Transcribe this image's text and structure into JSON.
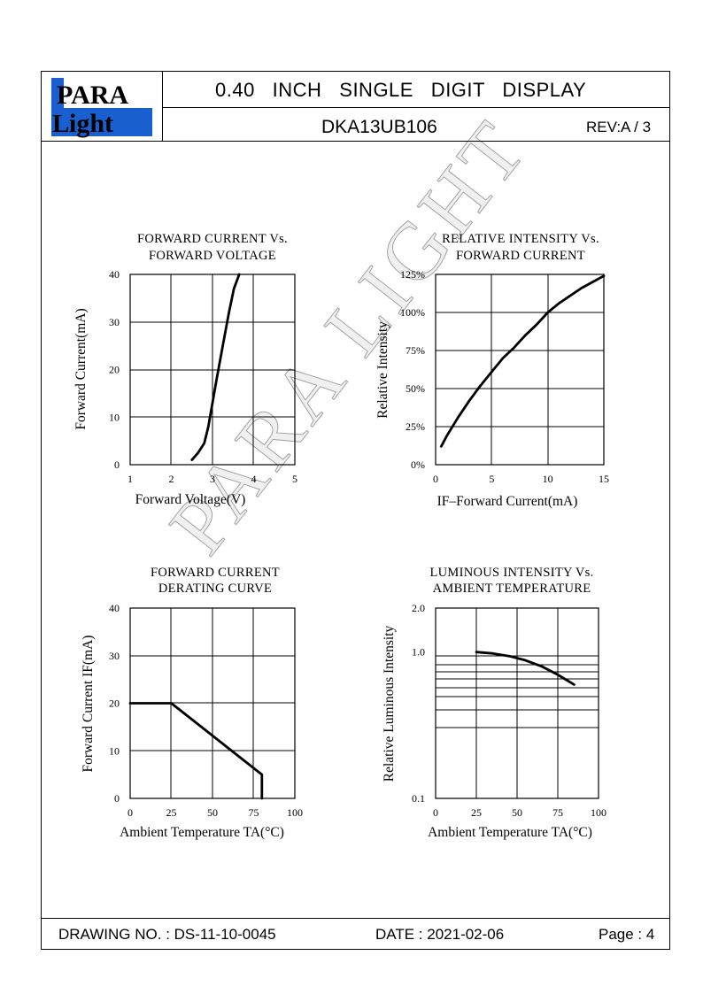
{
  "header": {
    "logo_top": "PARA",
    "logo_bottom": "ight",
    "logo_l": "L",
    "title": "0.40   INCH   SINGLE   DIGIT   DISPLAY",
    "part_number": "DKA13UB106",
    "revision": "REV:A / 3"
  },
  "footer": {
    "drawing_no": "DRAWING NO. : DS-11-10-0045",
    "date": "DATE : 2021-02-06",
    "page": "Page : 4"
  },
  "watermark": "PARA  LIGHT",
  "colors": {
    "logo_blue": "#1a5fd0",
    "line": "#000000"
  },
  "chart_data": [
    {
      "type": "line",
      "title": [
        "FORWARD  CURRENT  Vs.",
        "FORWARD  VOLTAGE"
      ],
      "xlabel": "Forward  Voltage(V)",
      "ylabel": "Forward  Current(mA)",
      "xlim": [
        1,
        5
      ],
      "ylim": [
        0,
        40
      ],
      "xticks": [
        "1",
        "2",
        "3",
        "4",
        "5"
      ],
      "yticks": [
        "0",
        "10",
        "20",
        "30",
        "40"
      ],
      "grid": true,
      "series": [
        {
          "x": [
            2.5,
            2.65,
            2.8,
            2.9,
            3.0,
            3.1,
            3.25,
            3.4,
            3.52,
            3.65
          ],
          "y": [
            1,
            2.5,
            4.5,
            8,
            13,
            18,
            25,
            32,
            37,
            40
          ]
        }
      ]
    },
    {
      "type": "line",
      "title": [
        "RELATIVE  INTENSITY  Vs.",
        "FORWARD  CURRENT"
      ],
      "xlabel": "IF–Forward  Current(mA)",
      "ylabel": "Relative  Intensity",
      "xlim": [
        0,
        15
      ],
      "ylim": [
        0,
        125
      ],
      "xticks": [
        "0",
        "5",
        "10",
        "15"
      ],
      "yticks": [
        "0%",
        "25%",
        "50%",
        "75%",
        "100%",
        "125%"
      ],
      "grid": true,
      "series": [
        {
          "x": [
            0.5,
            1,
            2,
            3,
            4,
            5,
            6,
            7,
            8,
            9,
            10,
            11,
            12,
            13,
            14,
            15
          ],
          "y": [
            12,
            19,
            31,
            42,
            52,
            61,
            70,
            77,
            85,
            92,
            100,
            106,
            111,
            116,
            120,
            124
          ]
        }
      ]
    },
    {
      "type": "line",
      "title": [
        "FORWARD  CURRENT",
        "DERATING  CURVE"
      ],
      "xlabel": "Ambient  Temperature  TA(°C)",
      "ylabel": "Forward  Current  IF(mA)",
      "xlim": [
        0,
        100
      ],
      "ylim": [
        0,
        40
      ],
      "xticks": [
        "0",
        "25",
        "50",
        "75",
        "100"
      ],
      "yticks": [
        "0",
        "10",
        "20",
        "30",
        "40"
      ],
      "grid": true,
      "series": [
        {
          "x": [
            0,
            25,
            80,
            80
          ],
          "y": [
            20,
            20,
            5,
            0
          ]
        }
      ]
    },
    {
      "type": "line",
      "title": [
        "LUMINOUS  INTENSITY  Vs.",
        "AMBIENT  TEMPERATURE"
      ],
      "xlabel": "Ambient  Temperature  TA(°C)",
      "ylabel": "Relative  Luminous  Intensity",
      "xlim": [
        0,
        100
      ],
      "ylim": [
        0.1,
        2.0
      ],
      "y_scale": "log",
      "xticks": [
        "0",
        "25",
        "50",
        "75",
        "100"
      ],
      "yticks": [
        "0.1",
        "1.0",
        "2.0"
      ],
      "grid": true,
      "series": [
        {
          "x": [
            25,
            35,
            45,
            55,
            65,
            75,
            85
          ],
          "y": [
            1.0,
            0.98,
            0.94,
            0.88,
            0.8,
            0.7,
            0.6
          ]
        }
      ]
    }
  ]
}
